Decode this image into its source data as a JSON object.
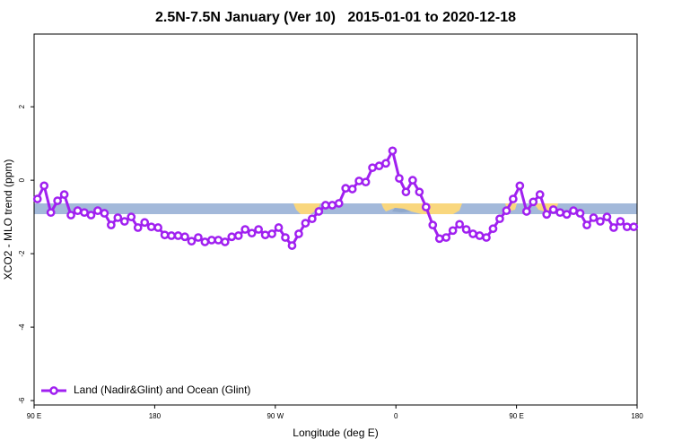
{
  "chart_data": {
    "type": "line",
    "title": "2.5N-7.5N January (Ver 10)   2015-01-01 to 2020-12-18",
    "x_label": "Longitude (deg E)",
    "y_label": "XCO2 - MLO trend (ppm)",
    "xlim": [
      90,
      540
    ],
    "xticks": [
      {
        "value": 90,
        "label": "90 E"
      },
      {
        "value": 180,
        "label": "180"
      },
      {
        "value": 270,
        "label": "90 W"
      },
      {
        "value": 360,
        "label": "0"
      },
      {
        "value": 450,
        "label": "90 E"
      },
      {
        "value": 540,
        "label": "180"
      }
    ],
    "ylim": [
      -6.12,
      3.98
    ],
    "yticks": [
      -6,
      -4,
      -2,
      0,
      2
    ],
    "legend": "bottom-left",
    "x": [
      92.5,
      97.5,
      102.5,
      107.5,
      112.5,
      117.5,
      122.5,
      127.5,
      132.5,
      137.5,
      142.5,
      147.5,
      152.5,
      157.5,
      162.5,
      167.5,
      172.5,
      177.5,
      182.5,
      187.5,
      192.5,
      197.5,
      202.5,
      207.5,
      212.5,
      217.5,
      222.5,
      227.5,
      232.5,
      237.5,
      242.5,
      247.5,
      252.5,
      257.5,
      262.5,
      267.5,
      272.5,
      277.5,
      282.5,
      287.5,
      292.5,
      297.5,
      302.5,
      307.5,
      312.5,
      317.5,
      322.5,
      327.5,
      332.5,
      337.5,
      342.5,
      347.5,
      352.5,
      357.5,
      362.5,
      367.5,
      372.5,
      377.5,
      382.5,
      387.5,
      392.5,
      397.5,
      402.5,
      407.5,
      412.5,
      417.5,
      422.5,
      427.5,
      432.5,
      437.5,
      442.5,
      447.5,
      452.5,
      457.5,
      462.5,
      467.5,
      472.5,
      477.5,
      482.5,
      487.5,
      492.5,
      497.5,
      502.5,
      507.5,
      512.5,
      517.5,
      522.5,
      527.5,
      532.5,
      537.5
    ],
    "series": [
      {
        "name": "Land (Nadir&Glint) and Ocean (Glint)",
        "color": "#a020f0",
        "values": [
          -0.51,
          -0.15,
          -0.88,
          -0.56,
          -0.39,
          -0.95,
          -0.83,
          -0.88,
          -0.95,
          -0.83,
          -0.9,
          -1.22,
          -1.02,
          -1.12,
          -1.0,
          -1.29,
          -1.15,
          -1.27,
          -1.29,
          -1.49,
          -1.51,
          -1.51,
          -1.54,
          -1.66,
          -1.56,
          -1.68,
          -1.63,
          -1.63,
          -1.68,
          -1.54,
          -1.51,
          -1.34,
          -1.44,
          -1.34,
          -1.49,
          -1.46,
          -1.29,
          -1.56,
          -1.78,
          -1.46,
          -1.17,
          -1.05,
          -0.85,
          -0.68,
          -0.68,
          -0.63,
          -0.22,
          -0.24,
          -0.02,
          -0.05,
          0.34,
          0.39,
          0.46,
          0.8,
          0.05,
          -0.32,
          0.0,
          -0.32,
          -0.73,
          -1.22,
          -1.59,
          -1.56,
          -1.37,
          -1.2,
          -1.34,
          -1.46,
          -1.51,
          -1.56,
          -1.32,
          -1.05,
          -0.83,
          -0.51,
          -0.15,
          -0.85,
          -0.59,
          -0.39,
          -0.93,
          -0.8,
          -0.88,
          -0.93,
          -0.83,
          -0.9,
          -1.22,
          -1.02,
          -1.12,
          -1.0,
          -1.29,
          -1.12,
          -1.27,
          -1.27
        ]
      }
    ]
  }
}
